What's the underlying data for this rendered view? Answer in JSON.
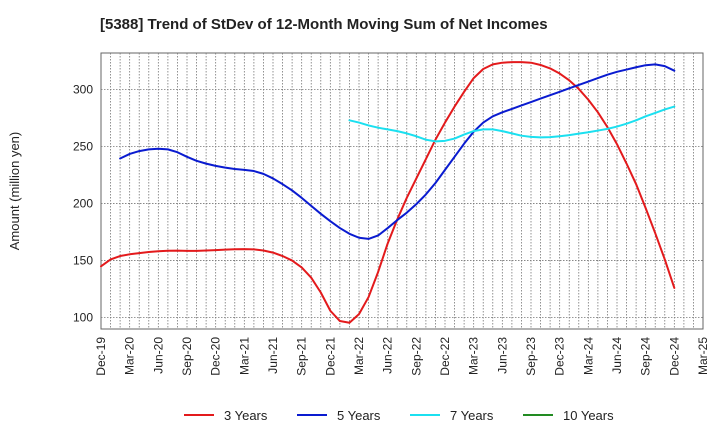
{
  "chart_data": {
    "type": "line",
    "title": "[5388]  Trend of StDev of 12-Month Moving Sum of Net Incomes",
    "xlabel": "",
    "ylabel": "Amount (million yen)",
    "x_ticks": [
      "Dec-19",
      "Mar-20",
      "Jun-20",
      "Sep-20",
      "Dec-20",
      "Mar-21",
      "Jun-21",
      "Sep-21",
      "Dec-21",
      "Mar-22",
      "Jun-22",
      "Sep-22",
      "Dec-22",
      "Mar-23",
      "Jun-23",
      "Sep-23",
      "Dec-23",
      "Mar-24",
      "Jun-24",
      "Sep-24",
      "Dec-24",
      "Mar-25"
    ],
    "y_ticks": [
      100,
      150,
      200,
      250,
      300
    ],
    "ylim": [
      90,
      332
    ],
    "grid": true,
    "legend_position": "bottom",
    "series": [
      {
        "name": "3 Years",
        "color": "#e31a1c",
        "points": [
          [
            "Dec-19",
            145
          ],
          [
            "Jan-20",
            151
          ],
          [
            "Feb-20",
            154
          ],
          [
            "Mar-20",
            155.5
          ],
          [
            "Apr-20",
            156.5
          ],
          [
            "May-20",
            157.5
          ],
          [
            "Jun-20",
            158.2
          ],
          [
            "Jul-20",
            158.6
          ],
          [
            "Aug-20",
            158.7
          ],
          [
            "Sep-20",
            158.5
          ],
          [
            "Oct-20",
            158.5
          ],
          [
            "Nov-20",
            158.8
          ],
          [
            "Dec-20",
            159.2
          ],
          [
            "Jan-21",
            159.6
          ],
          [
            "Feb-21",
            159.9
          ],
          [
            "Mar-21",
            160
          ],
          [
            "Apr-21",
            159.8
          ],
          [
            "May-21",
            158.8
          ],
          [
            "Jun-21",
            157
          ],
          [
            "Jul-21",
            154
          ],
          [
            "Aug-21",
            150
          ],
          [
            "Sep-21",
            144
          ],
          [
            "Oct-21",
            135
          ],
          [
            "Nov-21",
            122
          ],
          [
            "Dec-21",
            106
          ],
          [
            "Jan-22",
            97
          ],
          [
            "Feb-22",
            95.5
          ],
          [
            "Mar-22",
            103
          ],
          [
            "Apr-22",
            118
          ],
          [
            "May-22",
            140
          ],
          [
            "Jun-22",
            165
          ],
          [
            "Jul-22",
            186
          ],
          [
            "Aug-22",
            205
          ],
          [
            "Sep-22",
            222
          ],
          [
            "Oct-22",
            239
          ],
          [
            "Nov-22",
            256
          ],
          [
            "Dec-22",
            271
          ],
          [
            "Jan-23",
            285
          ],
          [
            "Feb-23",
            298
          ],
          [
            "Mar-23",
            310
          ],
          [
            "Apr-23",
            318
          ],
          [
            "May-23",
            322
          ],
          [
            "Jun-23",
            323.5
          ],
          [
            "Jul-23",
            324
          ],
          [
            "Aug-23",
            324
          ],
          [
            "Sep-23",
            323.5
          ],
          [
            "Oct-23",
            321.5
          ],
          [
            "Nov-23",
            318.5
          ],
          [
            "Dec-23",
            314
          ],
          [
            "Jan-24",
            308
          ],
          [
            "Feb-24",
            300.5
          ],
          [
            "Mar-24",
            291
          ],
          [
            "Apr-24",
            280
          ],
          [
            "May-24",
            267
          ],
          [
            "Jun-24",
            252
          ],
          [
            "Jul-24",
            235
          ],
          [
            "Aug-24",
            217
          ],
          [
            "Sep-24",
            196
          ],
          [
            "Oct-24",
            174
          ],
          [
            "Nov-24",
            151
          ],
          [
            "Dec-24",
            126
          ]
        ]
      },
      {
        "name": "5 Years",
        "color": "#0a1bd0",
        "points": [
          [
            "Feb-20",
            239.5
          ],
          [
            "Mar-20",
            243.5
          ],
          [
            "Apr-20",
            246
          ],
          [
            "May-20",
            247.5
          ],
          [
            "Jun-20",
            248
          ],
          [
            "Jul-20",
            247.5
          ],
          [
            "Aug-20",
            245
          ],
          [
            "Sep-20",
            241
          ],
          [
            "Oct-20",
            237.5
          ],
          [
            "Nov-20",
            235
          ],
          [
            "Dec-20",
            233
          ],
          [
            "Jan-21",
            231.5
          ],
          [
            "Feb-21",
            230.3
          ],
          [
            "Mar-21",
            229.5
          ],
          [
            "Apr-21",
            228.5
          ],
          [
            "May-21",
            226
          ],
          [
            "Jun-21",
            222
          ],
          [
            "Jul-21",
            217
          ],
          [
            "Aug-21",
            211.5
          ],
          [
            "Sep-21",
            205
          ],
          [
            "Oct-21",
            198
          ],
          [
            "Nov-21",
            191
          ],
          [
            "Dec-21",
            184.5
          ],
          [
            "Jan-22",
            178.5
          ],
          [
            "Feb-22",
            173.5
          ],
          [
            "Mar-22",
            170
          ],
          [
            "Apr-22",
            169
          ],
          [
            "May-22",
            172
          ],
          [
            "Jun-22",
            178.5
          ],
          [
            "Jul-22",
            185.5
          ],
          [
            "Aug-22",
            192
          ],
          [
            "Sep-22",
            199.5
          ],
          [
            "Oct-22",
            208
          ],
          [
            "Nov-22",
            218
          ],
          [
            "Dec-22",
            229.5
          ],
          [
            "Jan-23",
            241
          ],
          [
            "Feb-23",
            252.5
          ],
          [
            "Mar-23",
            263
          ],
          [
            "Apr-23",
            271
          ],
          [
            "May-23",
            276.5
          ],
          [
            "Jun-23",
            280
          ],
          [
            "Jul-23",
            283
          ],
          [
            "Aug-23",
            286
          ],
          [
            "Sep-23",
            289
          ],
          [
            "Oct-23",
            292
          ],
          [
            "Nov-23",
            295
          ],
          [
            "Dec-23",
            298
          ],
          [
            "Jan-24",
            301
          ],
          [
            "Feb-24",
            304
          ],
          [
            "Mar-24",
            307
          ],
          [
            "Apr-24",
            310
          ],
          [
            "May-24",
            313
          ],
          [
            "Jun-24",
            315.5
          ],
          [
            "Jul-24",
            317.5
          ],
          [
            "Aug-24",
            319.5
          ],
          [
            "Sep-24",
            321.3
          ],
          [
            "Oct-24",
            322
          ],
          [
            "Nov-24",
            320.5
          ],
          [
            "Dec-24",
            316.5
          ]
        ]
      },
      {
        "name": "7 Years",
        "color": "#1be0f0",
        "points": [
          [
            "Feb-22",
            273
          ],
          [
            "Mar-22",
            271
          ],
          [
            "Apr-22",
            268.5
          ],
          [
            "May-22",
            266.5
          ],
          [
            "Jun-22",
            265
          ],
          [
            "Jul-22",
            263.5
          ],
          [
            "Aug-22",
            261.5
          ],
          [
            "Sep-22",
            259
          ],
          [
            "Oct-22",
            256
          ],
          [
            "Nov-22",
            254.5
          ],
          [
            "Dec-22",
            255
          ],
          [
            "Jan-23",
            257
          ],
          [
            "Feb-23",
            260.5
          ],
          [
            "Mar-23",
            263.5
          ],
          [
            "Apr-23",
            265
          ],
          [
            "May-23",
            265
          ],
          [
            "Jun-23",
            263.5
          ],
          [
            "Jul-23",
            261.5
          ],
          [
            "Aug-23",
            259.5
          ],
          [
            "Sep-23",
            258.5
          ],
          [
            "Oct-23",
            258
          ],
          [
            "Nov-23",
            258.2
          ],
          [
            "Dec-23",
            259
          ],
          [
            "Jan-24",
            260
          ],
          [
            "Feb-24",
            261.3
          ],
          [
            "Mar-24",
            262.5
          ],
          [
            "Apr-24",
            264
          ],
          [
            "May-24",
            265.5
          ],
          [
            "Jun-24",
            267.5
          ],
          [
            "Jul-24",
            270
          ],
          [
            "Aug-24",
            273
          ],
          [
            "Sep-24",
            276.5
          ],
          [
            "Oct-24",
            279.5
          ],
          [
            "Nov-24",
            282.5
          ],
          [
            "Dec-24",
            285
          ]
        ]
      },
      {
        "name": "10 Years",
        "color": "#228b22",
        "points": []
      }
    ]
  }
}
